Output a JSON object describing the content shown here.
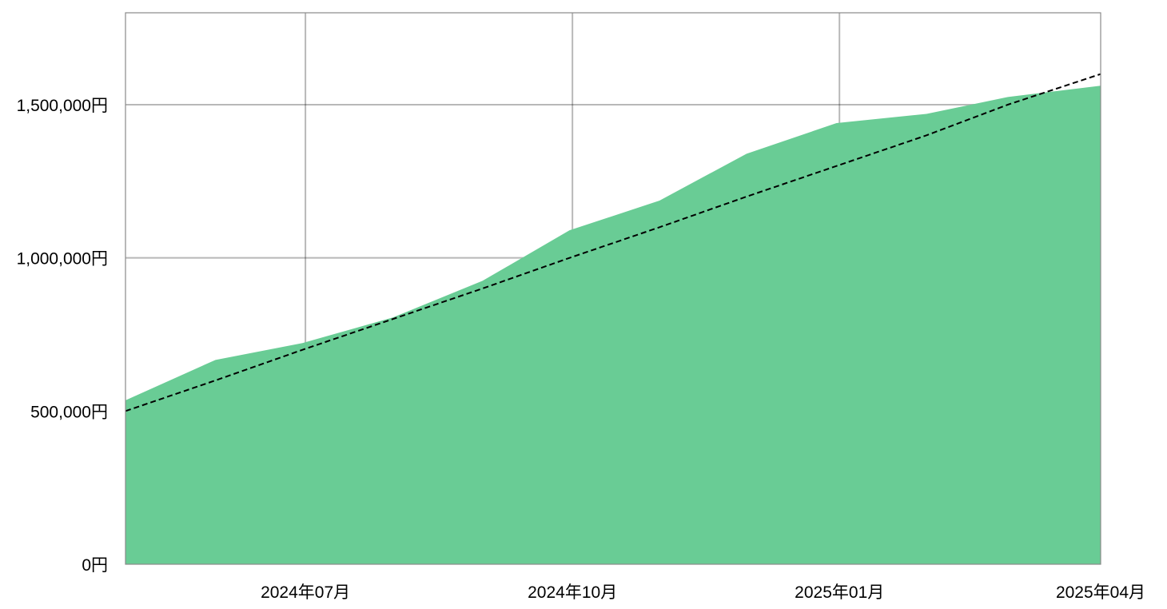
{
  "chart_data": {
    "type": "area",
    "title": "",
    "xlabel": "",
    "ylabel": "",
    "x_range": [
      "2024-04-30",
      "2025-04-01"
    ],
    "ylim": [
      0,
      1800000
    ],
    "grid": true,
    "legend": "none",
    "y_ticks": [
      {
        "value": 0,
        "label": "0円"
      },
      {
        "value": 500000,
        "label": "500,000円"
      },
      {
        "value": 1000000,
        "label": "1,000,000円"
      },
      {
        "value": 1500000,
        "label": "1,500,000円"
      }
    ],
    "x_ticks": [
      {
        "date": "2024-07-01",
        "label": "2024年07月"
      },
      {
        "date": "2024-10-01",
        "label": "2024年10月"
      },
      {
        "date": "2025-01-01",
        "label": "2025年01月"
      },
      {
        "date": "2025-04-01",
        "label": "2025年04月"
      }
    ],
    "series": [
      {
        "kind": "area",
        "color": "#69cc95",
        "points": [
          {
            "date": "2024-04-30",
            "value": 535000
          },
          {
            "date": "2024-05-31",
            "value": 667000
          },
          {
            "date": "2024-06-30",
            "value": 722000
          },
          {
            "date": "2024-07-31",
            "value": 805000
          },
          {
            "date": "2024-08-31",
            "value": 925000
          },
          {
            "date": "2024-09-30",
            "value": 1090000
          },
          {
            "date": "2024-10-31",
            "value": 1187000
          },
          {
            "date": "2024-11-30",
            "value": 1340000
          },
          {
            "date": "2024-12-31",
            "value": 1440000
          },
          {
            "date": "2025-01-31",
            "value": 1470000
          },
          {
            "date": "2025-02-28",
            "value": 1525000
          },
          {
            "date": "2025-04-01",
            "value": 1562000
          }
        ]
      },
      {
        "kind": "dashed-line",
        "color": "#000000",
        "points": [
          {
            "date": "2024-04-30",
            "value": 500000
          },
          {
            "date": "2024-05-31",
            "value": 600000
          },
          {
            "date": "2024-06-30",
            "value": 700000
          },
          {
            "date": "2024-07-31",
            "value": 800000
          },
          {
            "date": "2024-08-31",
            "value": 900000
          },
          {
            "date": "2024-09-30",
            "value": 1000000
          },
          {
            "date": "2024-10-31",
            "value": 1100000
          },
          {
            "date": "2024-11-30",
            "value": 1200000
          },
          {
            "date": "2024-12-31",
            "value": 1300000
          },
          {
            "date": "2025-01-31",
            "value": 1400000
          },
          {
            "date": "2025-02-28",
            "value": 1500000
          },
          {
            "date": "2025-04-01",
            "value": 1600000
          }
        ]
      }
    ]
  }
}
